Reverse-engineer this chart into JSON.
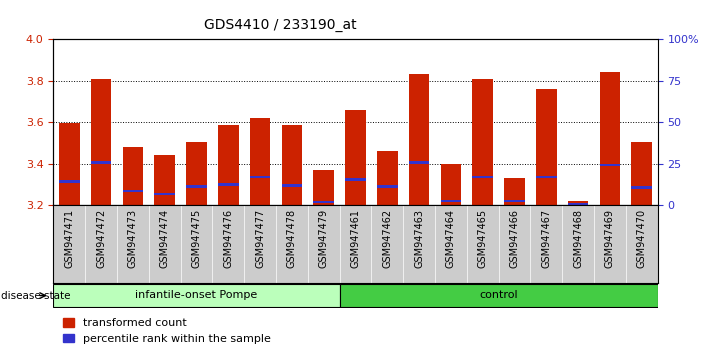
{
  "title": "GDS4410 / 233190_at",
  "samples": [
    "GSM947471",
    "GSM947472",
    "GSM947473",
    "GSM947474",
    "GSM947475",
    "GSM947476",
    "GSM947477",
    "GSM947478",
    "GSM947479",
    "GSM947461",
    "GSM947462",
    "GSM947463",
    "GSM947464",
    "GSM947465",
    "GSM947466",
    "GSM947467",
    "GSM947468",
    "GSM947469",
    "GSM947470"
  ],
  "red_values": [
    3.595,
    3.805,
    3.48,
    3.44,
    3.505,
    3.585,
    3.62,
    3.585,
    3.37,
    3.66,
    3.46,
    3.83,
    3.4,
    3.805,
    3.33,
    3.76,
    3.22,
    3.84,
    3.505
  ],
  "blue_values": [
    3.315,
    3.405,
    3.27,
    3.255,
    3.29,
    3.3,
    3.335,
    3.295,
    3.215,
    3.325,
    3.29,
    3.405,
    3.22,
    3.335,
    3.22,
    3.335,
    3.205,
    3.395,
    3.285
  ],
  "ymin": 3.2,
  "ymax": 4.0,
  "yticks_left": [
    3.2,
    3.4,
    3.6,
    3.8,
    4.0
  ],
  "yticks_right": [
    0,
    25,
    50,
    75,
    100
  ],
  "ytick_labels_right": [
    "0",
    "25",
    "50",
    "75",
    "100%"
  ],
  "bar_color_red": "#cc2200",
  "bar_color_blue": "#3333cc",
  "bar_width": 0.65,
  "group1_label": "infantile-onset Pompe",
  "group2_label": "control",
  "group1_indices": [
    0,
    1,
    2,
    3,
    4,
    5,
    6,
    7,
    8
  ],
  "group2_indices": [
    9,
    10,
    11,
    12,
    13,
    14,
    15,
    16,
    17,
    18
  ],
  "group1_color": "#bbffbb",
  "group2_color": "#44cc44",
  "disease_state_label": "disease state",
  "legend_red": "transformed count",
  "legend_blue": "percentile rank within the sample",
  "tick_color_left": "#cc2200",
  "tick_color_right": "#3333cc",
  "plot_bg": "#ffffff",
  "xtick_bg": "#cccccc",
  "blue_bar_height": 0.012
}
